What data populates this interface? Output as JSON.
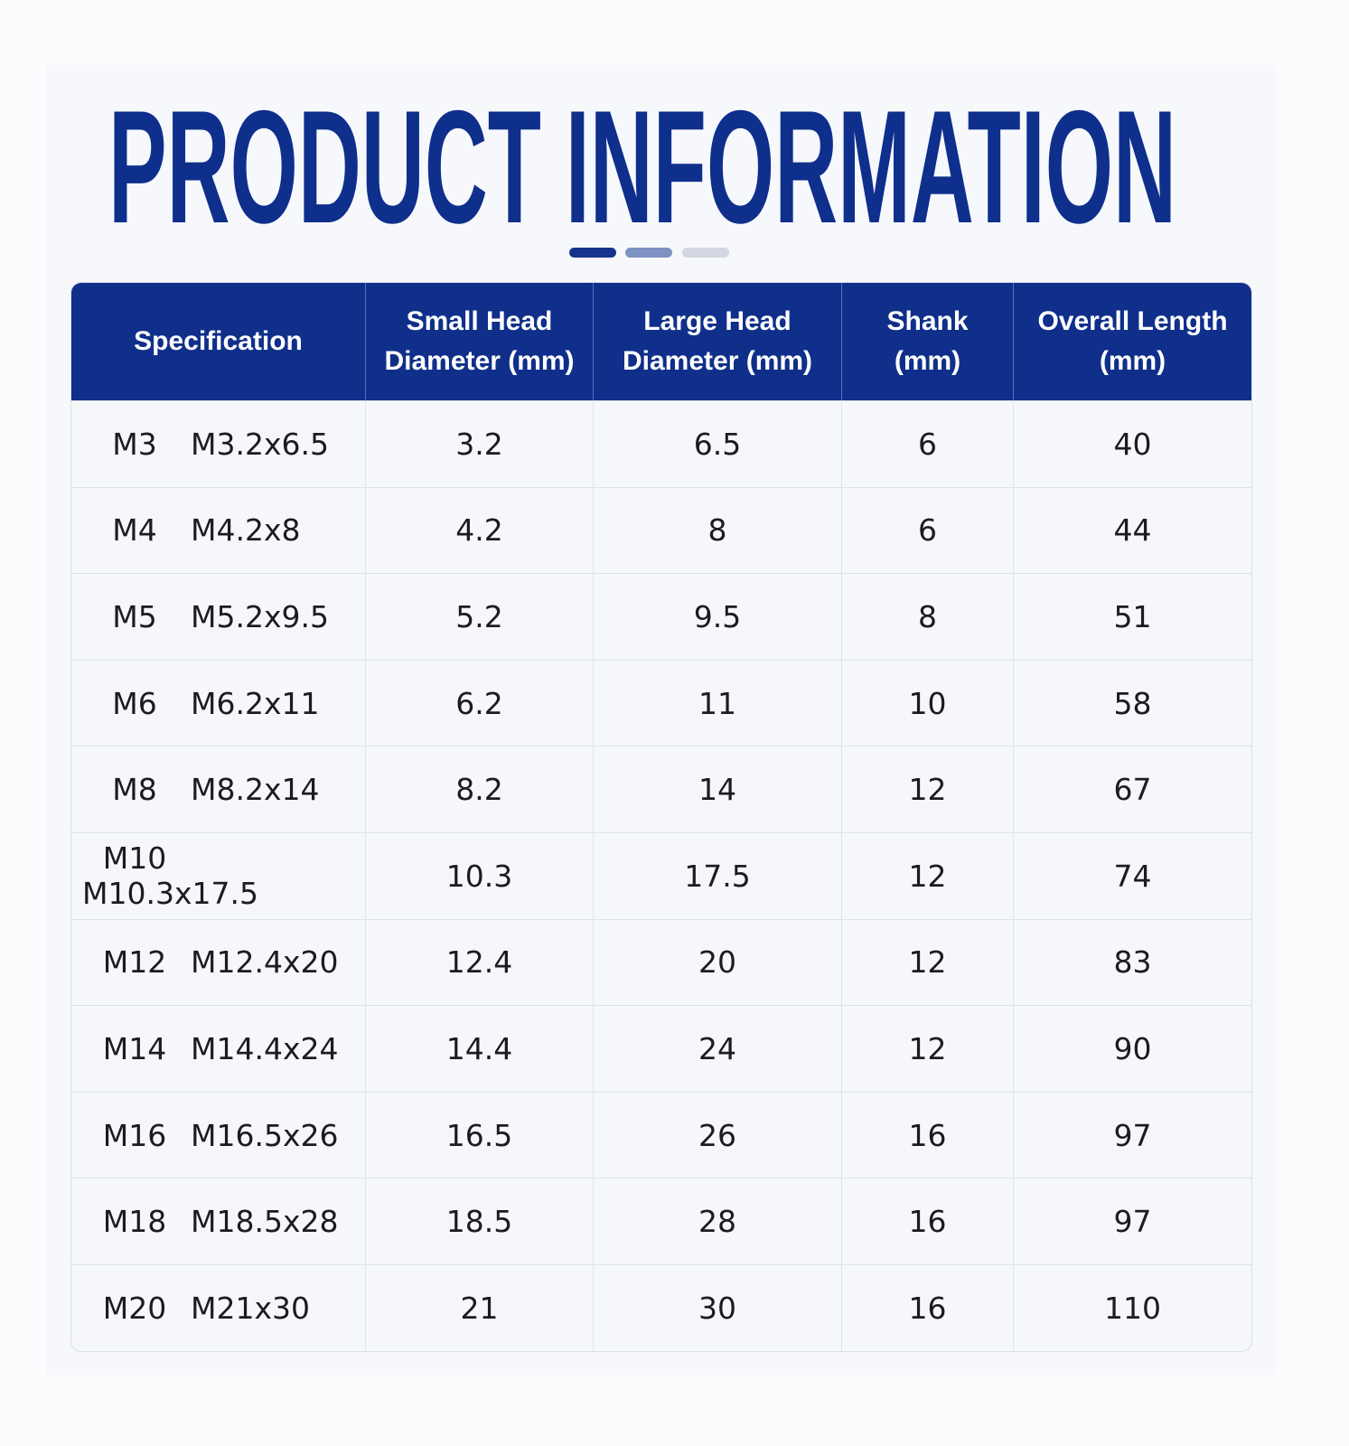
{
  "header": {
    "title": "PRODUCT INFORMATION"
  },
  "table": {
    "columns": [
      [
        "Specification"
      ],
      [
        "Small Head",
        "Diameter (mm)"
      ],
      [
        "Large Head",
        "Diameter (mm)"
      ],
      [
        "Shank",
        "(mm)"
      ],
      [
        "Overall Length",
        "(mm)"
      ]
    ],
    "rows": [
      [
        "M3",
        "M3.2x6.5",
        "3.2",
        "6.5",
        "6",
        "40"
      ],
      [
        "M4",
        "M4.2x8",
        "4.2",
        "8",
        "6",
        "44"
      ],
      [
        "M5",
        "M5.2x9.5",
        "5.2",
        "9.5",
        "8",
        "51"
      ],
      [
        "M6",
        "M6.2x11",
        "6.2",
        "11",
        "10",
        "58"
      ],
      [
        "M8",
        "M8.2x14",
        "8.2",
        "14",
        "12",
        "67"
      ],
      [
        "M10",
        "M10.3x17.5",
        "10.3",
        "17.5",
        "12",
        "74"
      ],
      [
        "M12",
        "M12.4x20",
        "12.4",
        "20",
        "12",
        "83"
      ],
      [
        "M14",
        "M14.4x24",
        "14.4",
        "24",
        "12",
        "90"
      ],
      [
        "M16",
        "M16.5x26",
        "16.5",
        "26",
        "16",
        "97"
      ],
      [
        "M18",
        "M18.5x28",
        "18.5",
        "28",
        "16",
        "97"
      ],
      [
        "M20",
        "M21x30",
        "21",
        "30",
        "16",
        "110"
      ]
    ]
  }
}
